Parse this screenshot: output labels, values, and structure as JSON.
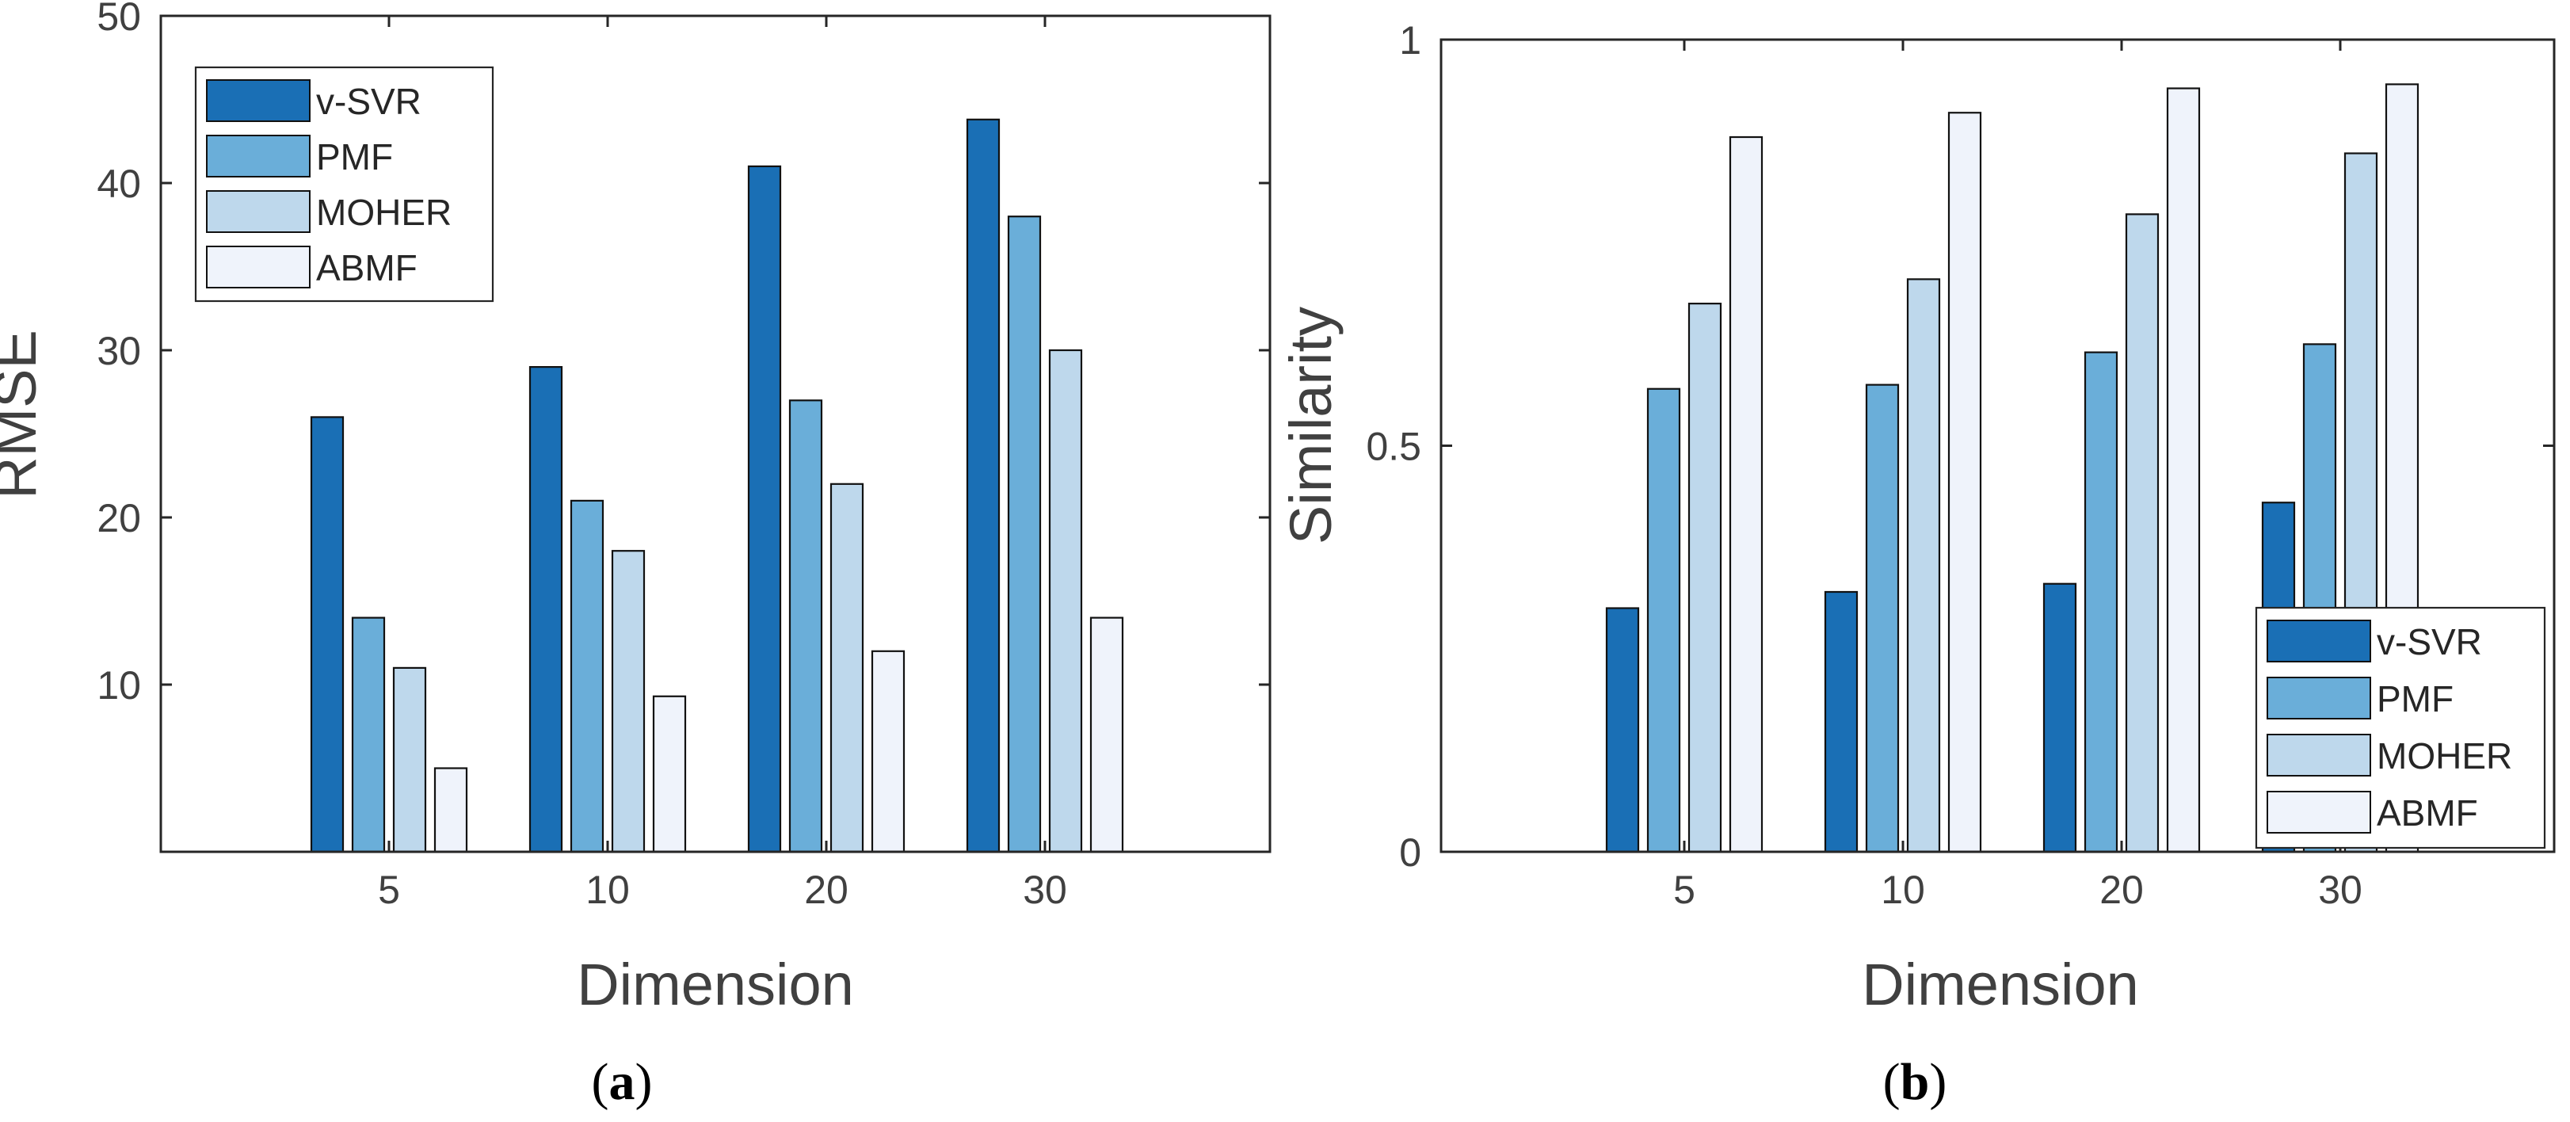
{
  "chart_data": [
    {
      "type": "bar",
      "panel": "a",
      "caption": "(a)",
      "caption_open": "(",
      "caption_letter": "a",
      "caption_close": ")",
      "title": "",
      "xlabel": "Dimension",
      "ylabel": "RMSE",
      "categories": [
        "5",
        "10",
        "20",
        "30"
      ],
      "ylim": [
        0,
        50
      ],
      "yticks": [
        10,
        20,
        30,
        40,
        50
      ],
      "ytick_labels": [
        "10",
        "20",
        "30",
        "40",
        "50"
      ],
      "legend_position": "top-left",
      "series": [
        {
          "name": "v-SVR",
          "values": [
            26,
            29,
            41,
            43.8
          ]
        },
        {
          "name": "PMF",
          "values": [
            14,
            21,
            27,
            38
          ]
        },
        {
          "name": "MOHER",
          "values": [
            11,
            18,
            22,
            30
          ]
        },
        {
          "name": "ABMF",
          "values": [
            5,
            9.3,
            12,
            14
          ]
        }
      ]
    },
    {
      "type": "bar",
      "panel": "b",
      "caption": "(b)",
      "caption_open": "(",
      "caption_letter": "b",
      "caption_close": ")",
      "title": "",
      "xlabel": "Dimension",
      "ylabel": "Similarity",
      "categories": [
        "5",
        "10",
        "20",
        "30"
      ],
      "ylim": [
        0,
        1
      ],
      "yticks": [
        0,
        0.5,
        1
      ],
      "ytick_labels": [
        "0",
        "0.5",
        "1"
      ],
      "legend_position": "bottom-right",
      "series": [
        {
          "name": "v-SVR",
          "values": [
            0.3,
            0.32,
            0.33,
            0.43
          ]
        },
        {
          "name": "PMF",
          "values": [
            0.57,
            0.575,
            0.615,
            0.625
          ]
        },
        {
          "name": "MOHER",
          "values": [
            0.675,
            0.705,
            0.785,
            0.86
          ]
        },
        {
          "name": "ABMF",
          "values": [
            0.88,
            0.91,
            0.94,
            0.945
          ]
        }
      ]
    }
  ],
  "colors": {
    "series": [
      "#1a6fb5",
      "#6aaed9",
      "#bed8ec",
      "#eff3fb"
    ],
    "bar_edge": "#111111",
    "axis": "#262626",
    "text": "#404040"
  }
}
